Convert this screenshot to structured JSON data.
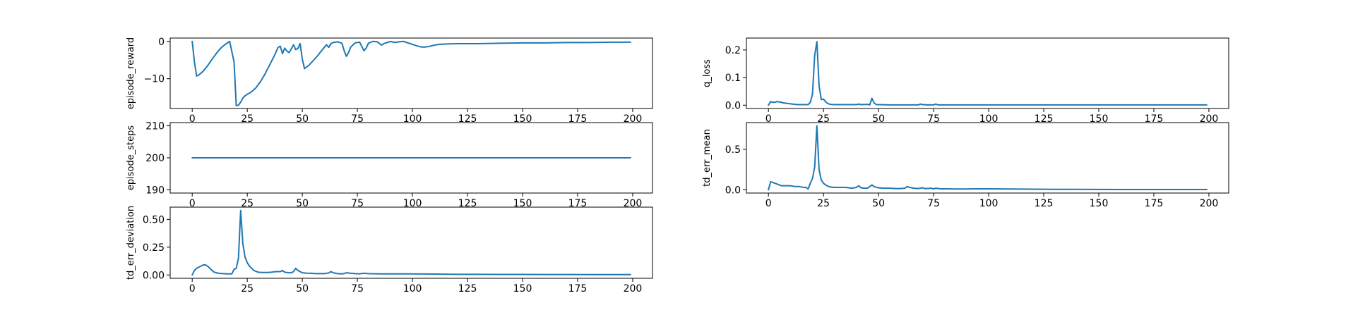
{
  "colors": {
    "series": "#1f77b4",
    "axis": "#000000",
    "background": "#ffffff"
  },
  "chart_data": [
    {
      "type": "line",
      "ylabel": "episode_reward",
      "xlim": [
        -10,
        209
      ],
      "ylim": [
        -18.0,
        0.9
      ],
      "xticks": [
        0,
        25,
        50,
        75,
        100,
        125,
        150,
        175,
        200
      ],
      "yticks": [
        0,
        -10
      ],
      "ytick_labels": [
        "0",
        "−10"
      ],
      "grid": false,
      "x": [
        0,
        1,
        2,
        3,
        5,
        7,
        9,
        11,
        13,
        15,
        17,
        19,
        20,
        21,
        22,
        23,
        24,
        25,
        27,
        29,
        31,
        33,
        35,
        37,
        39,
        40,
        41,
        42,
        43,
        44,
        45,
        46,
        47,
        48,
        49,
        50,
        51,
        53,
        55,
        57,
        59,
        61,
        62,
        63,
        64,
        66,
        68,
        69,
        70,
        71,
        72,
        74,
        76,
        78,
        79,
        80,
        82,
        84,
        86,
        87,
        88,
        90,
        92,
        94,
        96,
        98,
        100,
        102,
        104,
        106,
        108,
        110,
        112,
        115,
        120,
        125,
        130,
        140,
        150,
        160,
        170,
        180,
        190,
        199
      ],
      "y": [
        0,
        -5.5,
        -9.3,
        -9.0,
        -8.0,
        -6.5,
        -4.8,
        -3.2,
        -1.8,
        -0.8,
        0,
        -5.5,
        -17.2,
        -17.1,
        -16.3,
        -15.2,
        -14.6,
        -14.2,
        -13.5,
        -12.4,
        -10.8,
        -8.8,
        -6.5,
        -4.2,
        -1.6,
        -1.3,
        -3.3,
        -1.8,
        -2.6,
        -3.0,
        -2.0,
        -0.9,
        -2.2,
        -1.9,
        -0.6,
        -4.8,
        -7.3,
        -6.4,
        -5.1,
        -3.8,
        -2.3,
        -0.9,
        -1.6,
        -0.6,
        -0.3,
        -0.1,
        -0.5,
        -2.5,
        -4.0,
        -3.0,
        -1.5,
        -0.4,
        -0.2,
        -2.5,
        -1.8,
        -0.5,
        0,
        -0.1,
        -1.0,
        -0.6,
        -0.4,
        0,
        -0.3,
        -0.1,
        0,
        -0.4,
        -0.8,
        -1.2,
        -1.5,
        -1.5,
        -1.3,
        -1.0,
        -0.8,
        -0.7,
        -0.6,
        -0.6,
        -0.6,
        -0.5,
        -0.4,
        -0.4,
        -0.3,
        -0.3,
        -0.2,
        -0.2
      ]
    },
    {
      "type": "line",
      "ylabel": "episode_steps",
      "xlim": [
        -10,
        209
      ],
      "ylim": [
        189,
        211
      ],
      "xticks": [
        0,
        25,
        50,
        75,
        100,
        125,
        150,
        175,
        200
      ],
      "yticks": [
        190,
        200,
        210
      ],
      "ytick_labels": [
        "190",
        "200",
        "210"
      ],
      "grid": false,
      "x": [
        0,
        199
      ],
      "y": [
        200,
        200
      ]
    },
    {
      "type": "line",
      "ylabel": "td_err_deviation",
      "xlim": [
        -10,
        209
      ],
      "ylim": [
        -0.03,
        0.61
      ],
      "xticks": [
        0,
        25,
        50,
        75,
        100,
        125,
        150,
        175,
        200
      ],
      "yticks": [
        0.0,
        0.25,
        0.5
      ],
      "ytick_labels": [
        "0.00",
        "0.25",
        "0.50"
      ],
      "grid": false,
      "x": [
        0,
        1,
        2,
        3,
        4,
        5,
        6,
        7,
        8,
        9,
        10,
        12,
        14,
        16,
        18,
        19,
        20,
        21,
        22,
        23,
        24,
        25,
        26,
        27,
        28,
        30,
        32,
        34,
        36,
        38,
        40,
        41,
        42,
        44,
        45,
        46,
        47,
        48,
        49,
        50,
        52,
        54,
        56,
        58,
        60,
        62,
        63,
        64,
        66,
        68,
        69,
        70,
        72,
        74,
        76,
        78,
        80,
        85,
        90,
        95,
        100,
        110,
        120,
        130,
        140,
        150,
        160,
        170,
        180,
        190,
        199
      ],
      "y": [
        0.0,
        0.04,
        0.06,
        0.07,
        0.08,
        0.09,
        0.09,
        0.08,
        0.06,
        0.04,
        0.025,
        0.015,
        0.012,
        0.01,
        0.01,
        0.05,
        0.06,
        0.15,
        0.58,
        0.28,
        0.16,
        0.11,
        0.08,
        0.06,
        0.04,
        0.025,
        0.022,
        0.022,
        0.025,
        0.03,
        0.03,
        0.04,
        0.025,
        0.02,
        0.02,
        0.03,
        0.06,
        0.04,
        0.03,
        0.02,
        0.016,
        0.015,
        0.012,
        0.012,
        0.012,
        0.018,
        0.03,
        0.02,
        0.012,
        0.01,
        0.012,
        0.02,
        0.015,
        0.012,
        0.01,
        0.015,
        0.012,
        0.01,
        0.01,
        0.01,
        0.01,
        0.008,
        0.006,
        0.006,
        0.005,
        0.005,
        0.004,
        0.004,
        0.003,
        0.003,
        0.003
      ]
    },
    {
      "type": "line",
      "ylabel": "q_loss",
      "xlim": [
        -10,
        209
      ],
      "ylim": [
        -0.012,
        0.243
      ],
      "xticks": [
        0,
        25,
        50,
        75,
        100,
        125,
        150,
        175,
        200
      ],
      "yticks": [
        0.0,
        0.1,
        0.2
      ],
      "ytick_labels": [
        "0.0",
        "0.1",
        "0.2"
      ],
      "grid": false,
      "x": [
        0,
        1,
        2,
        3,
        4,
        5,
        6,
        7,
        8,
        9,
        10,
        12,
        14,
        16,
        18,
        19,
        20,
        21,
        22,
        23,
        24,
        25,
        26,
        27,
        28,
        30,
        35,
        40,
        41,
        42,
        45,
        46,
        47,
        48,
        49,
        50,
        55,
        60,
        65,
        68,
        69,
        70,
        72,
        75,
        76,
        77,
        80,
        90,
        100,
        120,
        140,
        160,
        180,
        199
      ],
      "y": [
        0.0,
        0.013,
        0.01,
        0.011,
        0.013,
        0.012,
        0.01,
        0.008,
        0.007,
        0.006,
        0.005,
        0.003,
        0.002,
        0.002,
        0.002,
        0.01,
        0.04,
        0.18,
        0.23,
        0.07,
        0.02,
        0.022,
        0.012,
        0.006,
        0.003,
        0.002,
        0.002,
        0.002,
        0.004,
        0.002,
        0.003,
        0.001,
        0.025,
        0.008,
        0.002,
        0.002,
        0.001,
        0.001,
        0.001,
        0.001,
        0.004,
        0.002,
        0.001,
        0.001,
        0.004,
        0.001,
        0.001,
        0.001,
        0.001,
        0.001,
        0.001,
        0.001,
        0.001,
        0.001
      ]
    },
    {
      "type": "line",
      "ylabel": "td_err_mean",
      "xlim": [
        -10,
        209
      ],
      "ylim": [
        -0.04,
        0.83
      ],
      "xticks": [
        0,
        25,
        50,
        75,
        100,
        125,
        150,
        175,
        200
      ],
      "yticks": [
        0.0,
        0.5
      ],
      "ytick_labels": [
        "0.0",
        "0.5"
      ],
      "grid": false,
      "x": [
        0,
        1,
        2,
        3,
        4,
        5,
        6,
        7,
        8,
        10,
        12,
        14,
        16,
        17,
        18,
        19,
        20,
        21,
        22,
        23,
        24,
        25,
        26,
        27,
        28,
        30,
        32,
        35,
        38,
        40,
        41,
        42,
        43,
        45,
        46,
        47,
        48,
        49,
        50,
        52,
        55,
        58,
        60,
        62,
        63,
        64,
        66,
        68,
        70,
        71,
        72,
        74,
        75,
        76,
        78,
        80,
        85,
        90,
        95,
        100,
        110,
        120,
        130,
        140,
        150,
        160,
        170,
        180,
        190,
        199
      ],
      "y": [
        0.0,
        0.1,
        0.09,
        0.08,
        0.07,
        0.06,
        0.05,
        0.05,
        0.05,
        0.05,
        0.04,
        0.04,
        0.03,
        0.03,
        0.01,
        0.08,
        0.14,
        0.28,
        0.79,
        0.25,
        0.12,
        0.08,
        0.06,
        0.045,
        0.035,
        0.03,
        0.03,
        0.03,
        0.02,
        0.03,
        0.05,
        0.025,
        0.02,
        0.02,
        0.04,
        0.06,
        0.04,
        0.03,
        0.025,
        0.02,
        0.02,
        0.015,
        0.015,
        0.02,
        0.04,
        0.03,
        0.02,
        0.015,
        0.025,
        0.015,
        0.015,
        0.02,
        0.01,
        0.02,
        0.012,
        0.012,
        0.01,
        0.01,
        0.012,
        0.012,
        0.01,
        0.008,
        0.006,
        0.006,
        0.005,
        0.004,
        0.004,
        0.003,
        0.003,
        0.003
      ]
    }
  ]
}
